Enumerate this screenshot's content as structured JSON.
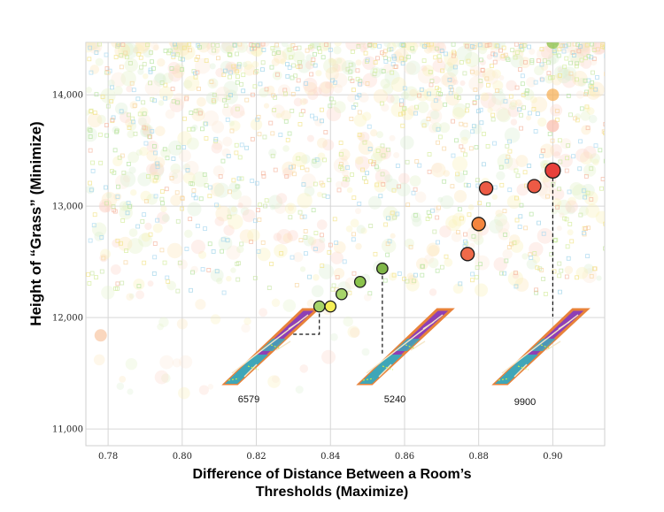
{
  "chart_data": {
    "type": "scatter",
    "xlabel_lines": [
      "Difference of Distance Between a Room’s",
      "Thresholds (Maximize)"
    ],
    "ylabel": "Height of “Grass” (Minimize)",
    "xlim": [
      0.774,
      0.914
    ],
    "ylim": [
      10850,
      14470
    ],
    "x_ticks": [
      0.78,
      0.8,
      0.82,
      0.84,
      0.86,
      0.88,
      0.9
    ],
    "x_tick_labels": [
      "0.78",
      "0.80",
      "0.82",
      "0.84",
      "0.86",
      "0.88",
      "0.90"
    ],
    "y_ticks": [
      11000,
      12000,
      13000,
      14000
    ],
    "y_tick_labels": [
      "11,000",
      "12,000",
      "13,000",
      "14,000"
    ],
    "grid": true,
    "background_cloud": "dense faint multicolored squares and circles (lower-quality population) concentrated above ~12,500",
    "pareto_front": [
      {
        "x": 0.837,
        "y": 12100,
        "color": "#a6d46a"
      },
      {
        "x": 0.84,
        "y": 12100,
        "color": "#f5ef57"
      },
      {
        "x": 0.843,
        "y": 12210,
        "color": "#a6d46a"
      },
      {
        "x": 0.848,
        "y": 12320,
        "color": "#8bc24c"
      },
      {
        "x": 0.854,
        "y": 12440,
        "color": "#7fb648"
      },
      {
        "x": 0.877,
        "y": 12570,
        "color": "#f06a4a"
      },
      {
        "x": 0.88,
        "y": 12840,
        "color": "#f4853e"
      },
      {
        "x": 0.882,
        "y": 13160,
        "color": "#ec5a45"
      },
      {
        "x": 0.895,
        "y": 13180,
        "color": "#ec5a45"
      },
      {
        "x": 0.9,
        "y": 13320,
        "color": "#e8403b"
      }
    ],
    "faint_highlights": [
      {
        "x": 0.9,
        "y": 14470,
        "color": "#8bc24c"
      },
      {
        "x": 0.9,
        "y": 14000,
        "color": "#f7b25a"
      },
      {
        "x": 0.9,
        "y": 13720,
        "color": "#f9c0b0"
      },
      {
        "x": 0.778,
        "y": 11840,
        "color": "#f8c9a8"
      }
    ],
    "solutions": [
      {
        "generation_label": "6579",
        "anchor": {
          "x": 0.837,
          "y": 12100
        }
      },
      {
        "generation_label": "5240",
        "anchor": {
          "x": 0.854,
          "y": 12440
        }
      },
      {
        "generation_label": "9900",
        "anchor": {
          "x": 0.9,
          "y": 13320
        }
      }
    ]
  }
}
